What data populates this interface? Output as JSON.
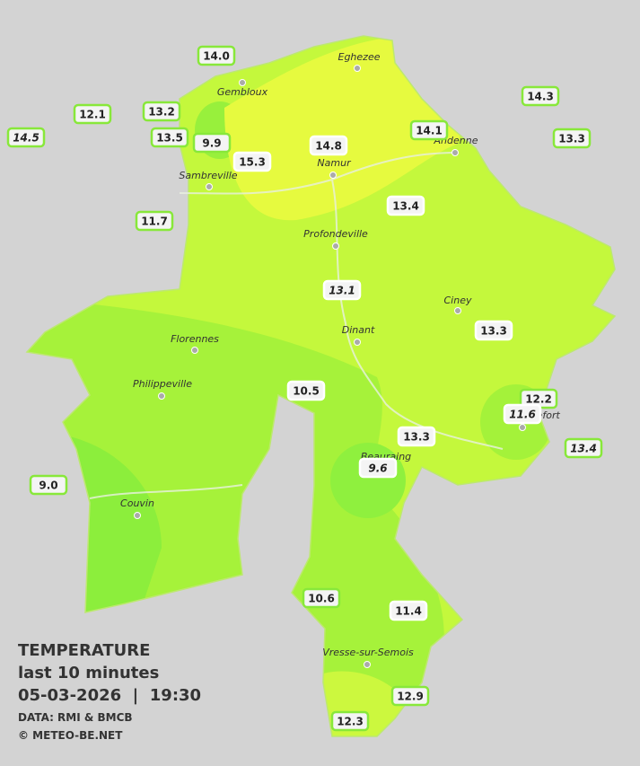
{
  "legend": {
    "title": "TEMPERATURE",
    "period": "last 10 minutes",
    "datetime": "05-03-2026  |  19:30",
    "source": "DATA: RMI & BMCB",
    "credit": "© METEO-BE.NET"
  },
  "places": [
    "Eghezee",
    "Gembloux",
    "Andenne",
    "Namur",
    "Sambreville",
    "Profondeville",
    "Ciney",
    "Dinant",
    "Florennes",
    "Philippeville",
    "Rochefort",
    "Beauraing",
    "Couvin",
    "Vresse-sur-Semois"
  ],
  "stations": [
    {
      "reading": "14.0",
      "italic": false,
      "inside": false
    },
    {
      "reading": "12.1",
      "italic": false,
      "inside": false
    },
    {
      "reading": "13.2",
      "italic": false,
      "inside": false
    },
    {
      "reading": "14.5",
      "italic": true,
      "inside": false
    },
    {
      "reading": "13.5",
      "italic": false,
      "inside": false
    },
    {
      "reading": "9.9",
      "italic": false,
      "inside": false
    },
    {
      "reading": "15.3",
      "italic": false,
      "inside": true
    },
    {
      "reading": "14.8",
      "italic": false,
      "inside": true
    },
    {
      "reading": "14.1",
      "italic": false,
      "inside": false
    },
    {
      "reading": "14.3",
      "italic": false,
      "inside": false
    },
    {
      "reading": "13.3",
      "italic": false,
      "inside": false
    },
    {
      "reading": "11.7",
      "italic": false,
      "inside": false
    },
    {
      "reading": "13.4",
      "italic": false,
      "inside": true
    },
    {
      "reading": "13.1",
      "italic": true,
      "inside": true
    },
    {
      "reading": "13.3",
      "italic": false,
      "inside": true
    },
    {
      "reading": "10.5",
      "italic": false,
      "inside": true
    },
    {
      "reading": "12.2",
      "italic": false,
      "inside": false
    },
    {
      "reading": "11.6",
      "italic": true,
      "inside": true
    },
    {
      "reading": "13.4",
      "italic": true,
      "inside": false
    },
    {
      "reading": "13.3",
      "italic": false,
      "inside": true
    },
    {
      "reading": "9.6",
      "italic": true,
      "inside": true
    },
    {
      "reading": "9.0",
      "italic": false,
      "inside": false
    },
    {
      "reading": "10.6",
      "italic": false,
      "inside": false
    },
    {
      "reading": "11.4",
      "italic": false,
      "inside": true
    },
    {
      "reading": "12.9",
      "italic": false,
      "inside": false
    },
    {
      "reading": "12.3",
      "italic": false,
      "inside": false
    }
  ]
}
